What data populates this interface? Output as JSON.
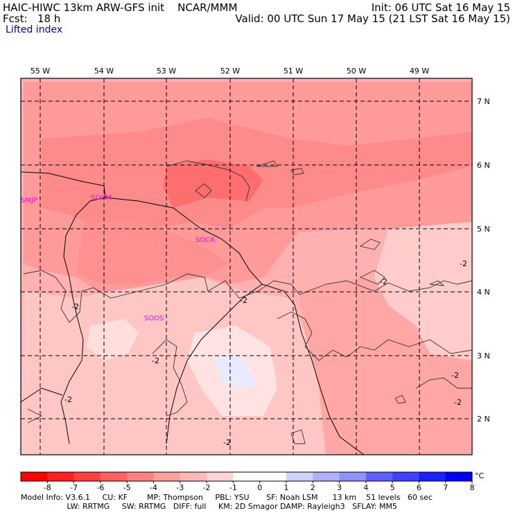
{
  "header": {
    "model": "HAIC-HIWC 13km ARW-GFS init",
    "center": "NCAR/MMM",
    "init": "Init: 06 UTC Sat 16 May 15",
    "fcst_label": "Fcst:",
    "fcst_value": "18 h",
    "valid": "Valid: 00 UTC Sun 17 May 15 (21 LST Sat 16 May 15)",
    "variable": "Lifted index"
  },
  "map": {
    "lon_labels": [
      "55 W",
      "54 W",
      "53 W",
      "52 W",
      "51 W",
      "50 W",
      "49 W"
    ],
    "lat_labels": [
      "7 N",
      "6 N",
      "5 N",
      "4 N",
      "3 N",
      "2 N"
    ],
    "stations": [
      {
        "id": "SMJP"
      },
      {
        "id": "SOCM"
      },
      {
        "id": "SOCA"
      },
      {
        "id": "SOOS"
      }
    ],
    "contour_labels": [
      "-2",
      "-2",
      "-2",
      "-2",
      "-2",
      "-2",
      "-2",
      "-2",
      "-2"
    ]
  },
  "colorbar": {
    "ticks": [
      "-8",
      "-7",
      "-6",
      "-5",
      "-4",
      "-3",
      "-2",
      "-1",
      "0",
      "1",
      "2",
      "3",
      "4",
      "5",
      "6",
      "7",
      "8"
    ],
    "unit": "°C",
    "colors": [
      "#ff0000",
      "#ff2020",
      "#ff4040",
      "#ff6060",
      "#ff8080",
      "#ffa0a0",
      "#ffb8b8",
      "#ffd4d4",
      "#ffffff",
      "#ffffff",
      "#d0d0ff",
      "#b0b0ff",
      "#9090ff",
      "#6060ff",
      "#4040ff",
      "#2020ff",
      "#0000ff"
    ]
  },
  "footer": {
    "line1": "Model Info: V3.6.1     CU: KF        MP: Thompson     PBL: YSU       SF: Noah LSM      13 km    51 levels   60 sec",
    "line2": "                   LW: RRTMG     SW: RRTMG   DIFF: full     KM: 2D Smagor DAMP: Rayleigh3   SFLAY: MM5"
  }
}
